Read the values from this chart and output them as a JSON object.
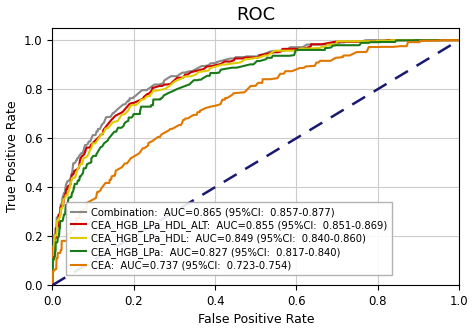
{
  "title": "ROC",
  "xlabel": "False Positive Rate",
  "ylabel": "True Positive Rate",
  "xlim": [
    0.0,
    1.0
  ],
  "ylim": [
    0.0,
    1.05
  ],
  "xticks": [
    0.0,
    0.2,
    0.4,
    0.6,
    0.8,
    1.0
  ],
  "yticks": [
    0.0,
    0.2,
    0.4,
    0.6,
    0.8,
    1.0
  ],
  "curves": [
    {
      "label": "Combination:  AUC=0.865 (95%CI:  0.857-0.877)",
      "color": "#888888",
      "auc": 0.865,
      "k": 0.18,
      "seed": 10
    },
    {
      "label": "CEA_HGB_LPa_HDL_ALT:  AUC=0.855 (95%CI:  0.851-0.869)",
      "color": "#cc0000",
      "auc": 0.855,
      "k": 0.19,
      "seed": 20
    },
    {
      "label": "CEA_HGB_LPa_HDL:  AUC=0.849 (95%CI:  0.840-0.860)",
      "color": "#ddcc00",
      "auc": 0.849,
      "k": 0.2,
      "seed": 30
    },
    {
      "label": "CEA_HGB_LPa:  AUC=0.827 (95%CI:  0.817-0.840)",
      "color": "#1a7a1a",
      "auc": 0.827,
      "k": 0.22,
      "seed": 40
    },
    {
      "label": "CEA:  AUC=0.737 (95%CI:  0.723-0.754)",
      "color": "#e07800",
      "auc": 0.737,
      "k": 0.4,
      "seed": 50
    }
  ],
  "diagonal_color": "#191970",
  "background_color": "#ffffff",
  "grid_color": "#cccccc",
  "title_fontsize": 13,
  "label_fontsize": 9,
  "legend_fontsize": 7.2,
  "tick_fontsize": 8.5
}
